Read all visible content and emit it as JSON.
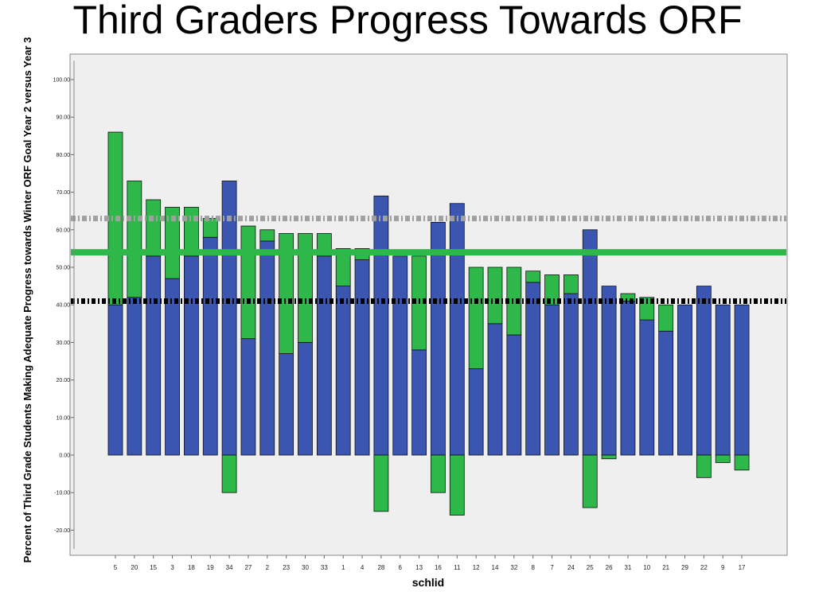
{
  "title": "Third Graders Progress Towards ORF",
  "chart_data": {
    "type": "bar",
    "xlabel": "schlid",
    "ylabel": "Percent of Third Grade Students Making Adequate Progress towards Winter ORF Goal Year 2 versus Year 3",
    "ylim": [
      -25,
      105
    ],
    "yticks": [
      "100.00",
      "90.00",
      "80.00",
      "70.00",
      "60.00",
      "50.00",
      "40.00",
      "30.00",
      "20.00",
      "10.00",
      "0.00",
      "-10.00",
      "-20.00"
    ],
    "ytick_values": [
      100,
      90,
      80,
      70,
      60,
      50,
      40,
      30,
      20,
      10,
      0,
      -10,
      -20
    ],
    "categories": [
      "5",
      "20",
      "15",
      "3",
      "18",
      "19",
      "34",
      "27",
      "2",
      "23",
      "30",
      "33",
      "1",
      "4",
      "28",
      "6",
      "13",
      "16",
      "11",
      "12",
      "14",
      "32",
      "8",
      "7",
      "24",
      "25",
      "26",
      "31",
      "10",
      "21",
      "29",
      "22",
      "9",
      "17"
    ],
    "series": [
      {
        "values": [
          40,
          42,
          53,
          47,
          53,
          58,
          73,
          31,
          57,
          27,
          30,
          53,
          45,
          52,
          69,
          53,
          28,
          62,
          67,
          23,
          35,
          32,
          46,
          40,
          43,
          60,
          45,
          41,
          36,
          33,
          40,
          45,
          40,
          40
        ],
        "color": "#3a56b0"
      },
      {
        "values": [
          46,
          31,
          15,
          19,
          13,
          5,
          -10,
          30,
          3,
          32,
          29,
          6,
          10,
          3,
          -15,
          0,
          25,
          -10,
          -16,
          27,
          15,
          18,
          3,
          8,
          5,
          -14,
          -1,
          2,
          6,
          7,
          0,
          -6,
          -2,
          -4
        ],
        "color": "#2fb84a"
      }
    ],
    "reference_lines": [
      {
        "value": 63,
        "style": "dashed",
        "color": "#a0a0a0"
      },
      {
        "value": 54,
        "style": "solid",
        "color": "#2fb84a"
      },
      {
        "value": 41,
        "style": "dashed",
        "color": "#000000"
      }
    ],
    "grid": false,
    "legend": "none"
  }
}
